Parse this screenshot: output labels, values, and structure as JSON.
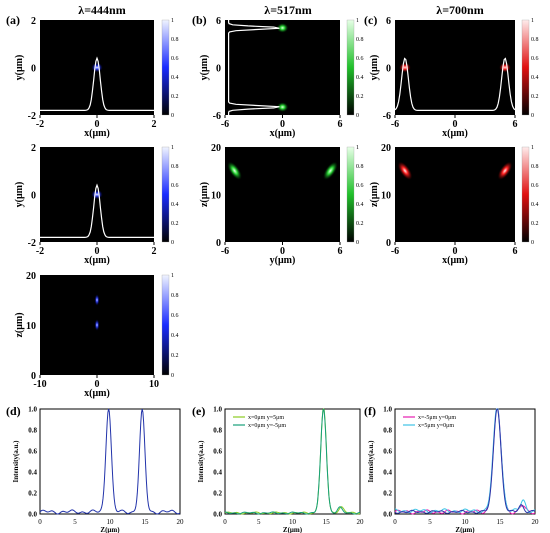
{
  "figure": {
    "panel_labels": [
      "(a)",
      "(b)",
      "(c)",
      "(d)",
      "(e)",
      "(f)"
    ],
    "column_titles": [
      "λ=444nm",
      "λ=517nm",
      "λ=700nm"
    ],
    "colors": {
      "blue": "#2a3cff",
      "green": "#2fdc3a",
      "red": "#ff2020",
      "line_d": "#2233aa",
      "lime": "#8ccc22",
      "teal": "#17a07a",
      "magenta": "#e51fb0",
      "cyan": "#3ec3e6",
      "navy": "#2a35a8"
    },
    "colorbar_ticks": [
      "0",
      "0.2",
      "0.4",
      "0.6",
      "0.8",
      "1"
    ]
  },
  "chart_data": [
    {
      "id": "a1",
      "type": "heatmap",
      "xlabel": "x(μm)",
      "ylabel": "y(μm)",
      "xticks": [
        "-2",
        "0",
        "2"
      ],
      "yticks": [
        "-2",
        "0",
        "2"
      ],
      "xlim": [
        -2,
        2
      ],
      "ylim": [
        -2,
        2
      ],
      "spots": [
        {
          "x": 0,
          "y": 0
        }
      ],
      "profile_peaks": [
        0
      ],
      "colormap": "blue"
    },
    {
      "id": "a2",
      "type": "heatmap",
      "xlabel": "x(μm)",
      "ylabel": "y(μm)",
      "xticks": [
        "-2",
        "0",
        "2"
      ],
      "yticks": [
        "-2",
        "0",
        "2"
      ],
      "xlim": [
        -2,
        2
      ],
      "ylim": [
        -2,
        2
      ],
      "spots": [
        {
          "x": 0,
          "y": 0
        }
      ],
      "profile_peaks": [
        0
      ],
      "colormap": "blue"
    },
    {
      "id": "a3",
      "type": "heatmap",
      "xlabel": "x(μm)",
      "ylabel": "z(μm)",
      "xticks": [
        "-10",
        "0",
        "10"
      ],
      "yticks": [
        "0",
        "10",
        "20"
      ],
      "xlim": [
        -10,
        10
      ],
      "ylim": [
        0,
        20
      ],
      "spots": [
        {
          "x": 0,
          "y": 15
        },
        {
          "x": 0,
          "y": 10
        }
      ],
      "colormap": "blue"
    },
    {
      "id": "b1",
      "type": "heatmap",
      "xlabel": "x(μm)",
      "ylabel": "y(μm)",
      "xticks": [
        "-6",
        "0",
        "6"
      ],
      "yticks": [
        "-6",
        "0",
        "6"
      ],
      "xlim": [
        -6,
        6
      ],
      "ylim": [
        -6,
        6
      ],
      "spots": [
        {
          "x": 0,
          "y": -5
        },
        {
          "x": 0,
          "y": 5
        }
      ],
      "profile_peaks": [
        -5,
        5
      ],
      "colormap": "green"
    },
    {
      "id": "b2",
      "type": "heatmap",
      "xlabel": "y(μm)",
      "ylabel": "z(μm)",
      "xticks": [
        "-6",
        "0",
        "6"
      ],
      "yticks": [
        "0",
        "10",
        "20"
      ],
      "xlim": [
        -6,
        6
      ],
      "ylim": [
        0,
        20
      ],
      "spots": [
        {
          "x": -5,
          "y": 15
        },
        {
          "x": 5,
          "y": 15
        }
      ],
      "colormap": "green"
    },
    {
      "id": "c1",
      "type": "heatmap",
      "xlabel": "x(μm)",
      "ylabel": "y(μm)",
      "xticks": [
        "-6",
        "0",
        "6"
      ],
      "yticks": [
        "-6",
        "0",
        "6"
      ],
      "xlim": [
        -6,
        6
      ],
      "ylim": [
        -6,
        6
      ],
      "spots": [
        {
          "x": -5,
          "y": 0
        },
        {
          "x": 5,
          "y": 0
        }
      ],
      "profile_peaks": [
        -5,
        5
      ],
      "colormap": "red"
    },
    {
      "id": "c2",
      "type": "heatmap",
      "xlabel": "x(μm)",
      "ylabel": "z(μm)",
      "xticks": [
        "-6",
        "0",
        "6"
      ],
      "yticks": [
        "0",
        "10",
        "20"
      ],
      "xlim": [
        -6,
        6
      ],
      "ylim": [
        0,
        20
      ],
      "spots": [
        {
          "x": -5,
          "y": 15
        },
        {
          "x": 5,
          "y": 15
        }
      ],
      "colormap": "red"
    },
    {
      "id": "d",
      "type": "line",
      "xlabel": "Z(μm)",
      "ylabel": "Intensity(a.u.)",
      "xticks": [
        "0",
        "5",
        "10",
        "15",
        "20"
      ],
      "yticks": [
        "0.0",
        "0.2",
        "0.4",
        "0.6",
        "0.8",
        "1.0"
      ],
      "xlim": [
        0,
        20
      ],
      "ylim": [
        0,
        1
      ],
      "series": [
        {
          "color": "line_d",
          "peaks": [
            {
              "x": 9.8,
              "y": 1.0,
              "w": 0.55
            },
            {
              "x": 14.6,
              "y": 0.96,
              "w": 0.55
            }
          ],
          "base": 0.02,
          "noise": 0.02
        }
      ]
    },
    {
      "id": "e",
      "type": "line",
      "xlabel": "Z(μm)",
      "ylabel": "Intensity(a.u.)",
      "xticks": [
        "0",
        "5",
        "10",
        "15",
        "20"
      ],
      "yticks": [
        "0.0",
        "0.2",
        "0.4",
        "0.6",
        "0.8",
        "1.0"
      ],
      "xlim": [
        0,
        20
      ],
      "ylim": [
        0,
        1
      ],
      "legend": [
        "x=0μm  y=5μm",
        "x=0μm  y=-5μm"
      ],
      "series": [
        {
          "name": "x=0μm  y=5μm",
          "color": "lime",
          "peaks": [
            {
              "x": 14.6,
              "y": 1.0,
              "w": 0.6
            },
            {
              "x": 17.2,
              "y": 0.06,
              "w": 0.5
            }
          ],
          "base": 0.01,
          "noise": 0.01
        },
        {
          "name": "x=0μm  y=-5μm",
          "color": "teal",
          "peaks": [
            {
              "x": 14.6,
              "y": 0.99,
              "w": 0.6
            },
            {
              "x": 17.0,
              "y": 0.05,
              "w": 0.5
            }
          ],
          "base": 0.01,
          "noise": 0.01
        }
      ]
    },
    {
      "id": "f",
      "type": "line",
      "xlabel": "Z(μm)",
      "ylabel": "Intensity(a.u.)",
      "xticks": [
        "0",
        "5",
        "10",
        "15",
        "20"
      ],
      "yticks": [
        "0.0",
        "0.2",
        "0.4",
        "0.6",
        "0.8",
        "1.0"
      ],
      "xlim": [
        0,
        20
      ],
      "ylim": [
        0,
        1
      ],
      "legend": [
        "x=-5μm  y=0μm",
        "x=5μm  y=0μm"
      ],
      "series": [
        {
          "name": "x=-5μm  y=0μm",
          "color": "magenta",
          "peaks": [
            {
              "x": 14.6,
              "y": 0.98,
              "w": 0.8
            },
            {
              "x": 18.2,
              "y": 0.06,
              "w": 0.5
            }
          ],
          "base": 0.02,
          "noise": 0.02
        },
        {
          "name": "x=5μm  y=0μm",
          "color": "cyan",
          "peaks": [
            {
              "x": 14.6,
              "y": 0.99,
              "w": 0.8
            },
            {
              "x": 18.3,
              "y": 0.1,
              "w": 0.5
            }
          ],
          "base": 0.03,
          "noise": 0.02
        },
        {
          "color": "navy",
          "peaks": [
            {
              "x": 14.6,
              "y": 1.0,
              "w": 0.75
            },
            {
              "x": 18.0,
              "y": 0.07,
              "w": 0.5
            }
          ],
          "base": 0.02,
          "noise": 0.015
        }
      ]
    }
  ]
}
